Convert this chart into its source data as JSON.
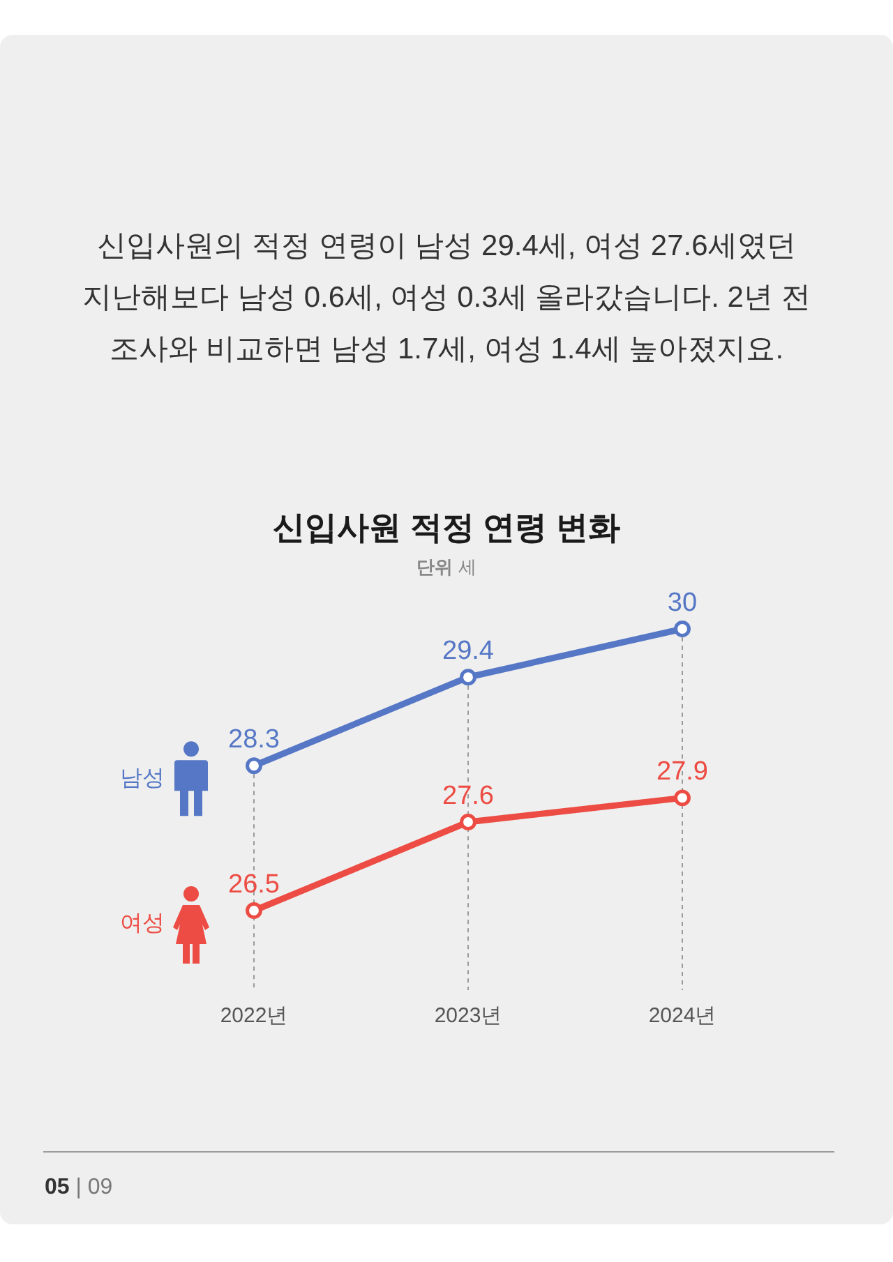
{
  "chart_data": {
    "type": "line",
    "title": "신입사원 적정 연령 변화",
    "subtitle": "단위 세",
    "annotations": [
      "신입사원의 적정 연령이 남성 29.4세, 여성 27.6세였던",
      "지난해보다 남성 0.6세, 여성 0.3세 올라갔습니다. 2년 전",
      "조사와 비교하면 남성 1.7세, 여성 1.4세 높아졌지요.",
      "05 | 09"
    ],
    "categories": [
      "2022년",
      "2023년",
      "2024년"
    ],
    "series": [
      {
        "name": "남성",
        "color": "#5577c5",
        "values": [
          28.3,
          29.4,
          30
        ]
      },
      {
        "name": "여성",
        "color": "#ec4c43",
        "values": [
          26.5,
          27.6,
          27.9
        ]
      }
    ],
    "data_labels": true,
    "marker": "circle",
    "line_style": "solid",
    "grid": "x",
    "tick_labels": "x"
  }
}
